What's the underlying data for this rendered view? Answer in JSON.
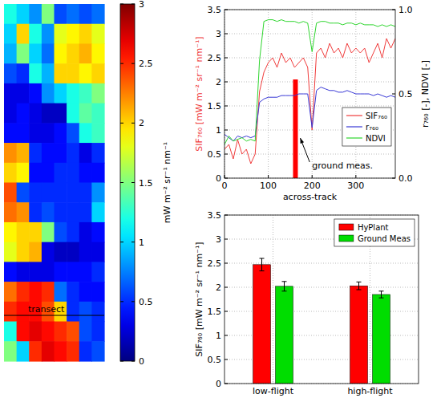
{
  "chart_data": [
    {
      "type": "heatmap",
      "tick_labels": false,
      "cells": [
        [
          1.2,
          1.0,
          0.8,
          1.5,
          0.6,
          0.7,
          0.6,
          0.7
        ],
        [
          1.0,
          2.0,
          1.2,
          0.8,
          1.8,
          1.9,
          2.0,
          1.8
        ],
        [
          0.9,
          1.5,
          1.0,
          0.7,
          1.9,
          2.0,
          2.1,
          1.9
        ],
        [
          0.6,
          0.5,
          1.2,
          0.9,
          2.0,
          2.0,
          1.9,
          2.0
        ],
        [
          0.3,
          0.3,
          0.4,
          0.8,
          1.0,
          1.2,
          1.3,
          1.5
        ],
        [
          0.3,
          0.4,
          0.3,
          0.2,
          0.2,
          1.2,
          1.4,
          1.3
        ],
        [
          0.4,
          0.4,
          0.3,
          0.3,
          0.4,
          0.6,
          1.2,
          1.3
        ],
        [
          2.2,
          2.1,
          0.5,
          0.4,
          0.4,
          0.5,
          0.3,
          0.5
        ],
        [
          2.0,
          1.9,
          0.4,
          0.4,
          0.5,
          0.5,
          0.4,
          0.4
        ],
        [
          2.4,
          0.6,
          0.5,
          0.5,
          0.5,
          0.5,
          0.5,
          0.8
        ],
        [
          2.3,
          2.2,
          0.5,
          0.6,
          0.5,
          0.5,
          0.5,
          1.0
        ],
        [
          1.9,
          2.0,
          2.0,
          1.5,
          0.6,
          0.5,
          0.3,
          0.4
        ],
        [
          1.8,
          2.0,
          2.1,
          0.3,
          0.2,
          0.2,
          0.3,
          0.3
        ],
        [
          0.4,
          0.3,
          0.3,
          0.3,
          0.4,
          0.4,
          0.4,
          0.5
        ],
        [
          2.3,
          2.5,
          2.6,
          2.5,
          0.7,
          0.5,
          0.4,
          0.4
        ],
        [
          2.5,
          2.6,
          2.6,
          2.4,
          2.0,
          0.5,
          0.6,
          0.5
        ],
        [
          1.2,
          2.6,
          2.7,
          2.6,
          2.5,
          2.4,
          0.6,
          0.5
        ],
        [
          1.5,
          1.0,
          2.5,
          2.7,
          2.6,
          2.5,
          0.5,
          0.6
        ]
      ],
      "colorbar": {
        "range": [
          0,
          3
        ],
        "ticks": [
          0,
          0.5,
          1,
          1.5,
          2,
          2.5,
          3
        ],
        "label": "mW m⁻² sr⁻¹ nm⁻¹"
      },
      "annotations": [
        "transect"
      ]
    },
    {
      "type": "line",
      "xlabel": "across-track",
      "ylabel": "SIF₇₆₀ [mW m⁻² sr⁻¹ nm⁻¹]",
      "y2label": "r₇₆₀ [-], NDVI [-]",
      "x": [
        0,
        10,
        20,
        30,
        40,
        50,
        60,
        70,
        80,
        90,
        100,
        110,
        120,
        130,
        140,
        150,
        160,
        170,
        180,
        190,
        200,
        210,
        220,
        230,
        240,
        250,
        260,
        270,
        280,
        290,
        300,
        310,
        320,
        330,
        340,
        350,
        360,
        370,
        380,
        390
      ],
      "xlim": [
        0,
        390
      ],
      "xticks": [
        0,
        100,
        200,
        300
      ],
      "ylim": [
        0,
        3.5
      ],
      "yticks": [
        0,
        0.5,
        1,
        1.5,
        2,
        2.5,
        3,
        3.5
      ],
      "y2lim": [
        0,
        1
      ],
      "y2ticks": [
        {
          "value": 0,
          "label": "0.0"
        },
        {
          "value": 0.5,
          "label": "0.5"
        },
        {
          "value": 1,
          "label": "1.0"
        }
      ],
      "grid": true,
      "legend": "lower right",
      "series": [
        {
          "name": "SIF₇₆₀",
          "color": "#f03c3c",
          "values": [
            0.6,
            0.7,
            0.4,
            0.8,
            0.5,
            0.6,
            0.3,
            0.5,
            1.8,
            2.2,
            2.4,
            2.5,
            2.3,
            2.6,
            2.4,
            2.5,
            2.3,
            2.4,
            2.5,
            2.3,
            1.0,
            2.6,
            2.7,
            2.5,
            2.8,
            2.6,
            2.7,
            2.5,
            2.8,
            2.6,
            2.7,
            2.6,
            2.7,
            2.4,
            2.6,
            2.8,
            2.5,
            2.9,
            2.7,
            2.9
          ]
        },
        {
          "name": "r₇₆₀",
          "color": "#3a3ad6",
          "axis": "y2",
          "values": [
            0.26,
            0.24,
            0.22,
            0.25,
            0.24,
            0.25,
            0.24,
            0.25,
            0.45,
            0.47,
            0.48,
            0.48,
            0.48,
            0.49,
            0.49,
            0.49,
            0.49,
            0.5,
            0.5,
            0.5,
            0.3,
            0.52,
            0.54,
            0.53,
            0.52,
            0.52,
            0.51,
            0.51,
            0.52,
            0.51,
            0.5,
            0.5,
            0.5,
            0.5,
            0.49,
            0.5,
            0.49,
            0.48,
            0.49,
            0.48
          ]
        },
        {
          "name": "NDVI",
          "color": "#2fd62f",
          "axis": "y2",
          "values": [
            0.2,
            0.25,
            0.22,
            0.23,
            0.24,
            0.22,
            0.23,
            0.22,
            0.7,
            0.93,
            0.94,
            0.94,
            0.93,
            0.94,
            0.93,
            0.93,
            0.93,
            0.92,
            0.93,
            0.92,
            0.75,
            0.92,
            0.93,
            0.93,
            0.92,
            0.92,
            0.92,
            0.91,
            0.92,
            0.92,
            0.91,
            0.92,
            0.91,
            0.91,
            0.91,
            0.9,
            0.91,
            0.9,
            0.91,
            0.9
          ]
        }
      ],
      "ground_measurement": {
        "x": 162,
        "value": 2.05,
        "color": "#ff0000"
      },
      "annotations": [
        "ground meas."
      ]
    },
    {
      "type": "bar",
      "ylabel": "SIF₇₆₀ [mW m⁻² sr⁻¹ nm⁻¹]",
      "categories": [
        "low-flight",
        "high-flight"
      ],
      "ylim": [
        0,
        3.5
      ],
      "yticks": [
        0,
        0.5,
        1,
        1.5,
        2,
        2.5,
        3,
        3.5
      ],
      "grid": true,
      "legend": "upper right",
      "series": [
        {
          "name": "HyPlant",
          "color": "#ff0000",
          "values": [
            2.47,
            2.03
          ],
          "errors": [
            0.13,
            0.08
          ]
        },
        {
          "name": "Ground Meas",
          "color": "#00dd00",
          "values": [
            2.02,
            1.85
          ],
          "errors": [
            0.1,
            0.07
          ]
        }
      ]
    }
  ]
}
